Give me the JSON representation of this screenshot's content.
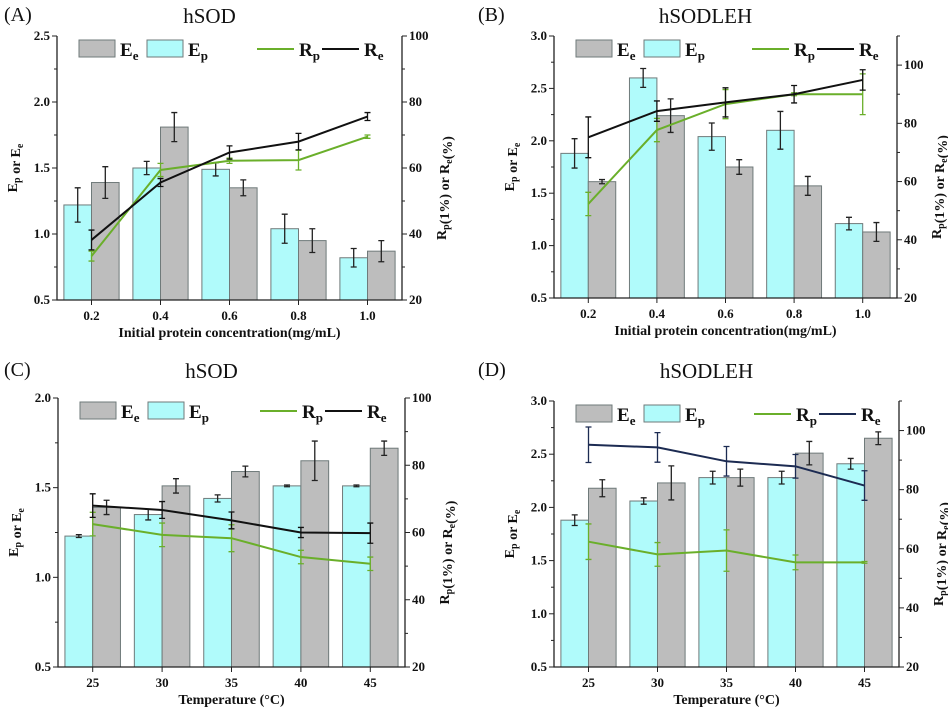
{
  "colors": {
    "Ep": "#b0fbfb",
    "Ee": "#bdbdbd",
    "Rp": "#6aaf2a",
    "Re": "#111111",
    "Re_D": "#1c2b52",
    "bar_edge": "#6f7a7a",
    "error": "#222222"
  },
  "chart_data": [
    {
      "type": "bar+line",
      "panel": "(A)",
      "title": "hSOD",
      "xlabel": "Initial protein concentration(mg/mL)",
      "ylabel": "Ep or Ee",
      "y2label": "Rp(1%) or Re(%)",
      "categories": [
        "0.2",
        "0.4",
        "0.6",
        "0.8",
        "1.0"
      ],
      "ylim": [
        0.5,
        2.5
      ],
      "yticks": [
        "0.5",
        "1.0",
        "1.5",
        "2.0",
        "2.5"
      ],
      "y2lim": [
        20,
        100
      ],
      "y2ticks": [
        "20",
        "40",
        "60",
        "80",
        "100"
      ],
      "legend": [
        "Ee",
        "Ep",
        "Rp",
        "Re"
      ],
      "legend_position": "top",
      "bars": [
        {
          "name": "Ep",
          "values": [
            1.22,
            1.5,
            1.49,
            1.04,
            0.82
          ],
          "errors": [
            0.13,
            0.05,
            0.05,
            0.11,
            0.07
          ]
        },
        {
          "name": "Ee",
          "values": [
            1.39,
            1.81,
            1.35,
            0.95,
            0.87
          ],
          "errors": [
            0.12,
            0.11,
            0.06,
            0.09,
            0.08
          ]
        }
      ],
      "lines": [
        {
          "name": "Rp",
          "values": [
            33.3,
            59.4,
            62.2,
            62.4,
            69.5
          ],
          "errors": [
            1.5,
            2,
            0.8,
            3,
            0.5
          ]
        },
        {
          "name": "Re",
          "values": [
            38.2,
            55.6,
            64.7,
            68.0,
            75.6
          ],
          "errors": [
            3,
            1.2,
            2,
            2.5,
            1.2
          ]
        }
      ]
    },
    {
      "type": "bar+line",
      "panel": "(B)",
      "title": "hSODLEH",
      "xlabel": "Initial protein concentration(mg/mL)",
      "ylabel": "Ep or Ee",
      "y2label": "Rp(1%) or Re(%)",
      "categories": [
        "0.2",
        "0.4",
        "0.6",
        "0.8",
        "1.0"
      ],
      "ylim": [
        0.5,
        3.0
      ],
      "yticks": [
        "0.5",
        "1.0",
        "1.5",
        "2.0",
        "2.5",
        "3.0"
      ],
      "y2lim": [
        20,
        110
      ],
      "y2ticks": [
        "20",
        "40",
        "60",
        "80",
        "100"
      ],
      "legend": [
        "Ee",
        "Ep",
        "Rp",
        "Re"
      ],
      "legend_position": "top",
      "bars": [
        {
          "name": "Ep",
          "values": [
            1.88,
            2.6,
            2.04,
            2.1,
            1.21
          ],
          "errors": [
            0.14,
            0.09,
            0.13,
            0.18,
            0.06
          ]
        },
        {
          "name": "Ee",
          "values": [
            1.61,
            2.24,
            1.75,
            1.57,
            1.13
          ],
          "errors": [
            0.02,
            0.16,
            0.07,
            0.09,
            0.09
          ]
        }
      ],
      "lines": [
        {
          "name": "Rp",
          "values": [
            52.3,
            77.7,
            86.6,
            90.0,
            90.0
          ],
          "errors": [
            4,
            4,
            5,
            0.5,
            7
          ]
        },
        {
          "name": "Re",
          "values": [
            75.2,
            84.2,
            87.2,
            90.0,
            94.9
          ],
          "errors": [
            7,
            3.5,
            5,
            3,
            3.5
          ]
        }
      ]
    },
    {
      "type": "bar+line",
      "panel": "(C)",
      "title": "hSOD",
      "xlabel": "Temperature (°C)",
      "ylabel": "Ep or Ee",
      "y2label": "Rp(1%) or Re(%)",
      "categories": [
        "25",
        "30",
        "35",
        "40",
        "45"
      ],
      "ylim": [
        0.5,
        2.0
      ],
      "yticks": [
        "0.5",
        "1.0",
        "1.5",
        "2.0"
      ],
      "y2lim": [
        20,
        100
      ],
      "y2ticks": [
        "20",
        "40",
        "60",
        "80",
        "100"
      ],
      "legend": [
        "Ee",
        "Ep",
        "Rp",
        "Re"
      ],
      "legend_position": "top",
      "bars": [
        {
          "name": "Ep",
          "values": [
            1.23,
            1.35,
            1.44,
            1.51,
            1.51
          ],
          "errors": [
            0.008,
            0.03,
            0.02,
            0.005,
            0.005
          ]
        },
        {
          "name": "Ee",
          "values": [
            1.39,
            1.51,
            1.59,
            1.65,
            1.72
          ],
          "errors": [
            0.04,
            0.04,
            0.03,
            0.11,
            0.04
          ]
        }
      ],
      "lines": [
        {
          "name": "Rp",
          "values": [
            62.5,
            59.3,
            58.3,
            52.7,
            50.7
          ],
          "errors": [
            3.5,
            3.5,
            4,
            2,
            2
          ]
        },
        {
          "name": "Re",
          "values": [
            68.0,
            66.7,
            63.6,
            60.0,
            59.8
          ],
          "errors": [
            3.5,
            2.5,
            2.5,
            1.5,
            3
          ]
        }
      ]
    },
    {
      "type": "bar+line",
      "panel": "(D)",
      "title": "hSODLEH",
      "xlabel": "Temperature (°C)",
      "ylabel": "Ep or Ee",
      "y2label": "Rp(1%) or Re(%)",
      "categories": [
        "25",
        "30",
        "35",
        "40",
        "45"
      ],
      "ylim": [
        0.5,
        3.0
      ],
      "yticks": [
        "0.5",
        "1.0",
        "1.5",
        "2.0",
        "2.5",
        "3.0"
      ],
      "y2lim": [
        20,
        110
      ],
      "y2ticks": [
        "20",
        "40",
        "60",
        "80",
        "100"
      ],
      "legend": [
        "Ee",
        "Ep",
        "Rp",
        "Re"
      ],
      "legend_position": "top",
      "bars": [
        {
          "name": "Ep",
          "values": [
            1.88,
            2.06,
            2.28,
            2.28,
            2.41
          ],
          "errors": [
            0.05,
            0.03,
            0.06,
            0.06,
            0.05
          ]
        },
        {
          "name": "Ee",
          "values": [
            2.18,
            2.23,
            2.28,
            2.51,
            2.65
          ],
          "errors": [
            0.08,
            0.16,
            0.08,
            0.11,
            0.06
          ]
        }
      ],
      "lines": [
        {
          "name": "Rp",
          "values": [
            62.4,
            58.1,
            59.4,
            55.4,
            55.4
          ],
          "errors": [
            6,
            4,
            7,
            2.5,
            0.3
          ]
        },
        {
          "name": "Re",
          "values": [
            95.2,
            94.3,
            89.6,
            87.9,
            81.4
          ],
          "errors": [
            6,
            5,
            5,
            4,
            5
          ]
        }
      ]
    }
  ]
}
